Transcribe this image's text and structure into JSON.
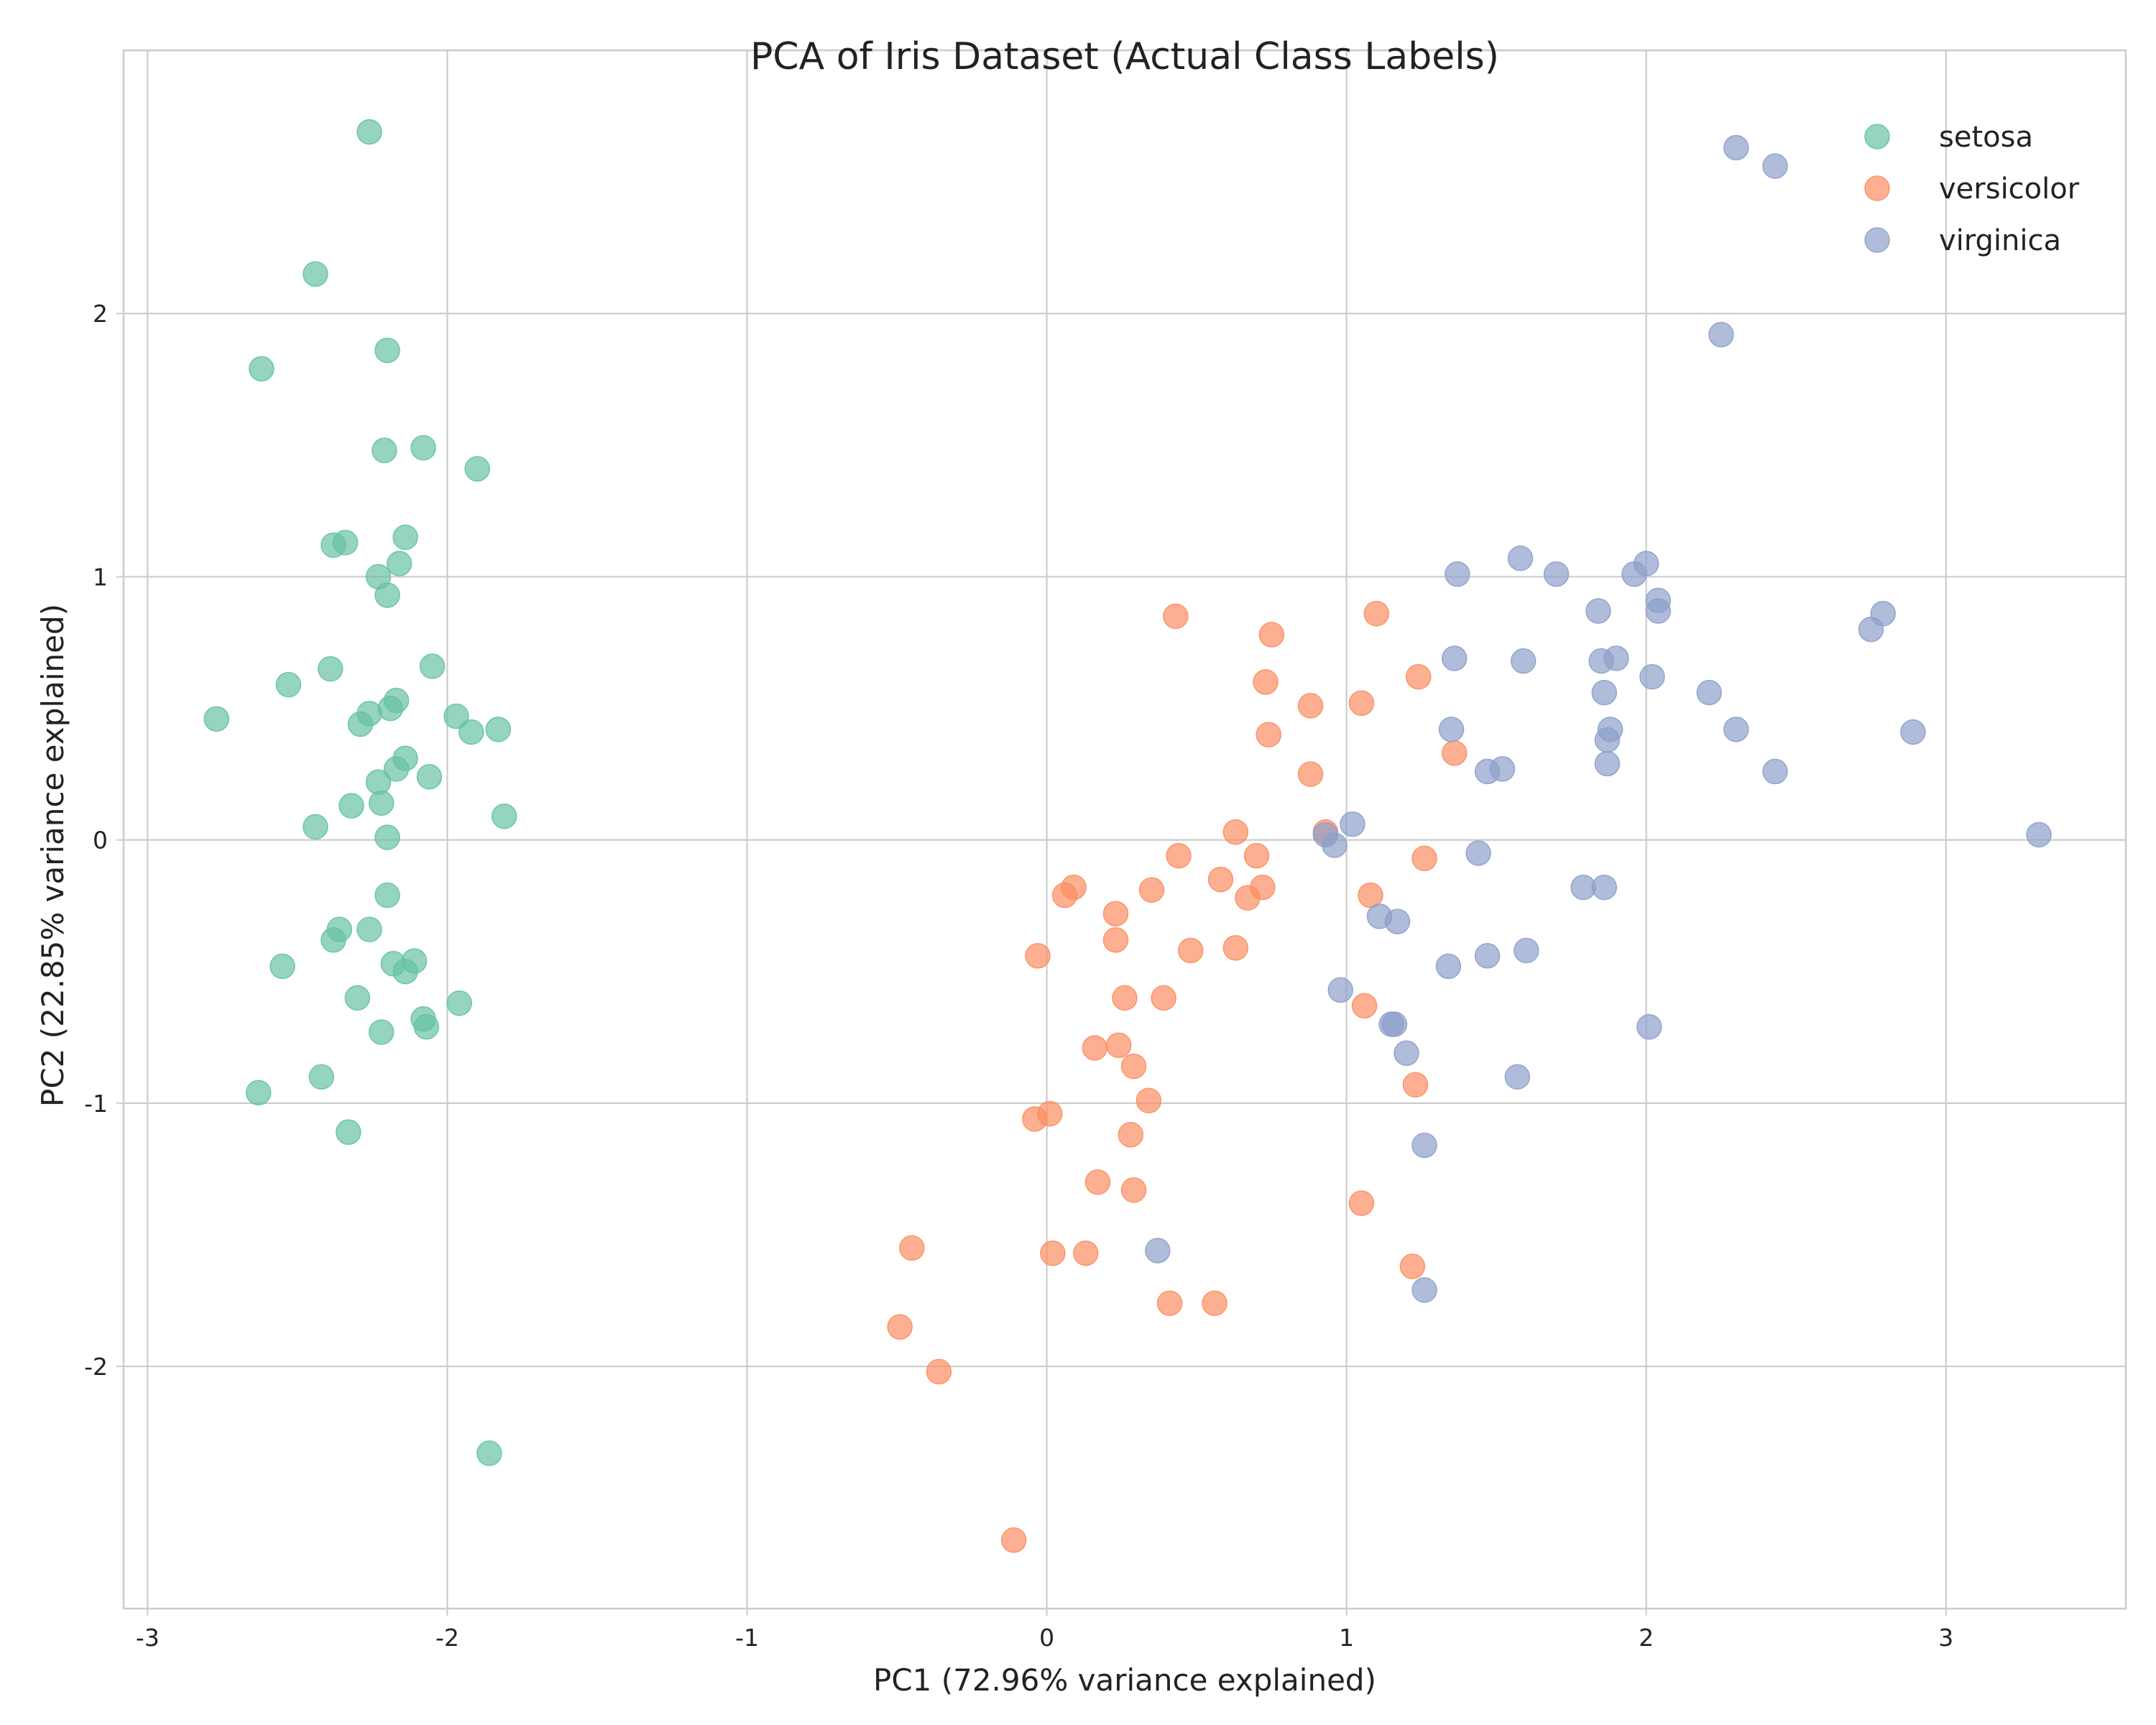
{
  "chart_data": {
    "type": "scatter",
    "title": "PCA of Iris Dataset (Actual Class Labels)",
    "xlabel": "PC1 (72.96% variance explained)",
    "ylabel": "PC2 (22.85% variance explained)",
    "xlim": [
      -3.08,
      3.6
    ],
    "ylim": [
      -2.92,
      3.0
    ],
    "xticks": [
      -3,
      -2,
      -1,
      0,
      1,
      2,
      3
    ],
    "xtick_labels": [
      "-3",
      "-2",
      "-1",
      "0",
      "1",
      "2",
      "3"
    ],
    "yticks": [
      -2,
      -1,
      0,
      1,
      2
    ],
    "ytick_labels": [
      "-2",
      "-1",
      "0",
      "1",
      "2"
    ],
    "grid": true,
    "legend_position": "top-right",
    "series": [
      {
        "name": "setosa",
        "color": "#66c2a5",
        "points": [
          [
            -2.26,
            2.69
          ],
          [
            -2.44,
            2.15
          ],
          [
            -2.62,
            1.79
          ],
          [
            -2.2,
            1.86
          ],
          [
            -2.21,
            1.48
          ],
          [
            -2.08,
            1.49
          ],
          [
            -1.9,
            1.41
          ],
          [
            -2.38,
            1.12
          ],
          [
            -2.34,
            1.13
          ],
          [
            -2.14,
            1.15
          ],
          [
            -2.23,
            1.0
          ],
          [
            -2.16,
            1.05
          ],
          [
            -2.2,
            0.93
          ],
          [
            -2.39,
            0.65
          ],
          [
            -2.05,
            0.66
          ],
          [
            -2.53,
            0.59
          ],
          [
            -2.77,
            0.46
          ],
          [
            -2.26,
            0.48
          ],
          [
            -2.29,
            0.44
          ],
          [
            -2.19,
            0.5
          ],
          [
            -2.17,
            0.53
          ],
          [
            -1.97,
            0.47
          ],
          [
            -1.92,
            0.41
          ],
          [
            -1.83,
            0.42
          ],
          [
            -2.14,
            0.31
          ],
          [
            -2.17,
            0.27
          ],
          [
            -2.23,
            0.22
          ],
          [
            -2.06,
            0.24
          ],
          [
            -2.32,
            0.13
          ],
          [
            -2.22,
            0.14
          ],
          [
            -1.81,
            0.09
          ],
          [
            -2.44,
            0.05
          ],
          [
            -2.2,
            0.01
          ],
          [
            -2.2,
            -0.21
          ],
          [
            -2.36,
            -0.34
          ],
          [
            -2.26,
            -0.34
          ],
          [
            -2.38,
            -0.38
          ],
          [
            -2.55,
            -0.48
          ],
          [
            -2.18,
            -0.47
          ],
          [
            -2.11,
            -0.46
          ],
          [
            -2.14,
            -0.5
          ],
          [
            -2.3,
            -0.6
          ],
          [
            -1.96,
            -0.62
          ],
          [
            -2.22,
            -0.73
          ],
          [
            -2.08,
            -0.68
          ],
          [
            -2.07,
            -0.71
          ],
          [
            -2.63,
            -0.96
          ],
          [
            -2.42,
            -0.9
          ],
          [
            -2.33,
            -1.11
          ],
          [
            -1.86,
            -2.33
          ]
        ]
      },
      {
        "name": "versicolor",
        "color": "#fc8d62",
        "points": [
          [
            0.43,
            0.85
          ],
          [
            0.75,
            0.78
          ],
          [
            1.1,
            0.86
          ],
          [
            0.73,
            0.6
          ],
          [
            1.24,
            0.62
          ],
          [
            0.88,
            0.51
          ],
          [
            1.05,
            0.52
          ],
          [
            0.74,
            0.4
          ],
          [
            1.36,
            0.33
          ],
          [
            0.88,
            0.25
          ],
          [
            0.63,
            0.03
          ],
          [
            0.93,
            0.03
          ],
          [
            0.44,
            -0.06
          ],
          [
            0.7,
            -0.06
          ],
          [
            1.26,
            -0.07
          ],
          [
            0.09,
            -0.18
          ],
          [
            0.06,
            -0.21
          ],
          [
            0.35,
            -0.19
          ],
          [
            0.58,
            -0.15
          ],
          [
            0.72,
            -0.18
          ],
          [
            0.67,
            -0.22
          ],
          [
            1.08,
            -0.21
          ],
          [
            0.23,
            -0.28
          ],
          [
            0.23,
            -0.38
          ],
          [
            -0.03,
            -0.44
          ],
          [
            0.48,
            -0.42
          ],
          [
            0.63,
            -0.41
          ],
          [
            0.26,
            -0.6
          ],
          [
            0.39,
            -0.6
          ],
          [
            1.06,
            -0.63
          ],
          [
            0.16,
            -0.79
          ],
          [
            0.24,
            -0.78
          ],
          [
            0.29,
            -0.86
          ],
          [
            1.23,
            -0.93
          ],
          [
            0.34,
            -0.99
          ],
          [
            -0.04,
            -1.06
          ],
          [
            0.01,
            -1.04
          ],
          [
            0.28,
            -1.12
          ],
          [
            0.17,
            -1.3
          ],
          [
            0.29,
            -1.33
          ],
          [
            1.05,
            -1.38
          ],
          [
            -0.45,
            -1.55
          ],
          [
            0.02,
            -1.57
          ],
          [
            0.13,
            -1.57
          ],
          [
            1.22,
            -1.62
          ],
          [
            0.41,
            -1.76
          ],
          [
            0.56,
            -1.76
          ],
          [
            -0.49,
            -1.85
          ],
          [
            -0.36,
            -2.02
          ],
          [
            -0.11,
            -2.66
          ]
        ]
      },
      {
        "name": "virginica",
        "color": "#8da0cb",
        "points": [
          [
            2.3,
            2.63
          ],
          [
            2.43,
            2.56
          ],
          [
            2.25,
            1.92
          ],
          [
            1.58,
            1.07
          ],
          [
            2.0,
            1.05
          ],
          [
            1.37,
            1.01
          ],
          [
            1.7,
            1.01
          ],
          [
            1.96,
            1.01
          ],
          [
            2.04,
            0.91
          ],
          [
            2.04,
            0.87
          ],
          [
            1.84,
            0.87
          ],
          [
            2.79,
            0.86
          ],
          [
            2.75,
            0.8
          ],
          [
            1.36,
            0.69
          ],
          [
            1.59,
            0.68
          ],
          [
            1.85,
            0.68
          ],
          [
            1.9,
            0.69
          ],
          [
            2.02,
            0.62
          ],
          [
            1.86,
            0.56
          ],
          [
            2.21,
            0.56
          ],
          [
            1.35,
            0.42
          ],
          [
            1.88,
            0.42
          ],
          [
            2.3,
            0.42
          ],
          [
            2.89,
            0.41
          ],
          [
            1.87,
            0.38
          ],
          [
            1.87,
            0.29
          ],
          [
            1.47,
            0.26
          ],
          [
            1.52,
            0.27
          ],
          [
            2.43,
            0.26
          ],
          [
            1.02,
            0.06
          ],
          [
            0.93,
            0.02
          ],
          [
            0.96,
            -0.02
          ],
          [
            3.31,
            0.02
          ],
          [
            1.44,
            -0.05
          ],
          [
            1.79,
            -0.18
          ],
          [
            1.86,
            -0.18
          ],
          [
            1.11,
            -0.29
          ],
          [
            1.17,
            -0.31
          ],
          [
            1.34,
            -0.48
          ],
          [
            1.47,
            -0.44
          ],
          [
            1.6,
            -0.42
          ],
          [
            0.98,
            -0.57
          ],
          [
            1.15,
            -0.7
          ],
          [
            1.16,
            -0.7
          ],
          [
            2.01,
            -0.71
          ],
          [
            1.2,
            -0.81
          ],
          [
            1.57,
            -0.9
          ],
          [
            1.26,
            -1.16
          ],
          [
            0.37,
            -1.56
          ],
          [
            1.26,
            -1.71
          ]
        ]
      }
    ]
  }
}
